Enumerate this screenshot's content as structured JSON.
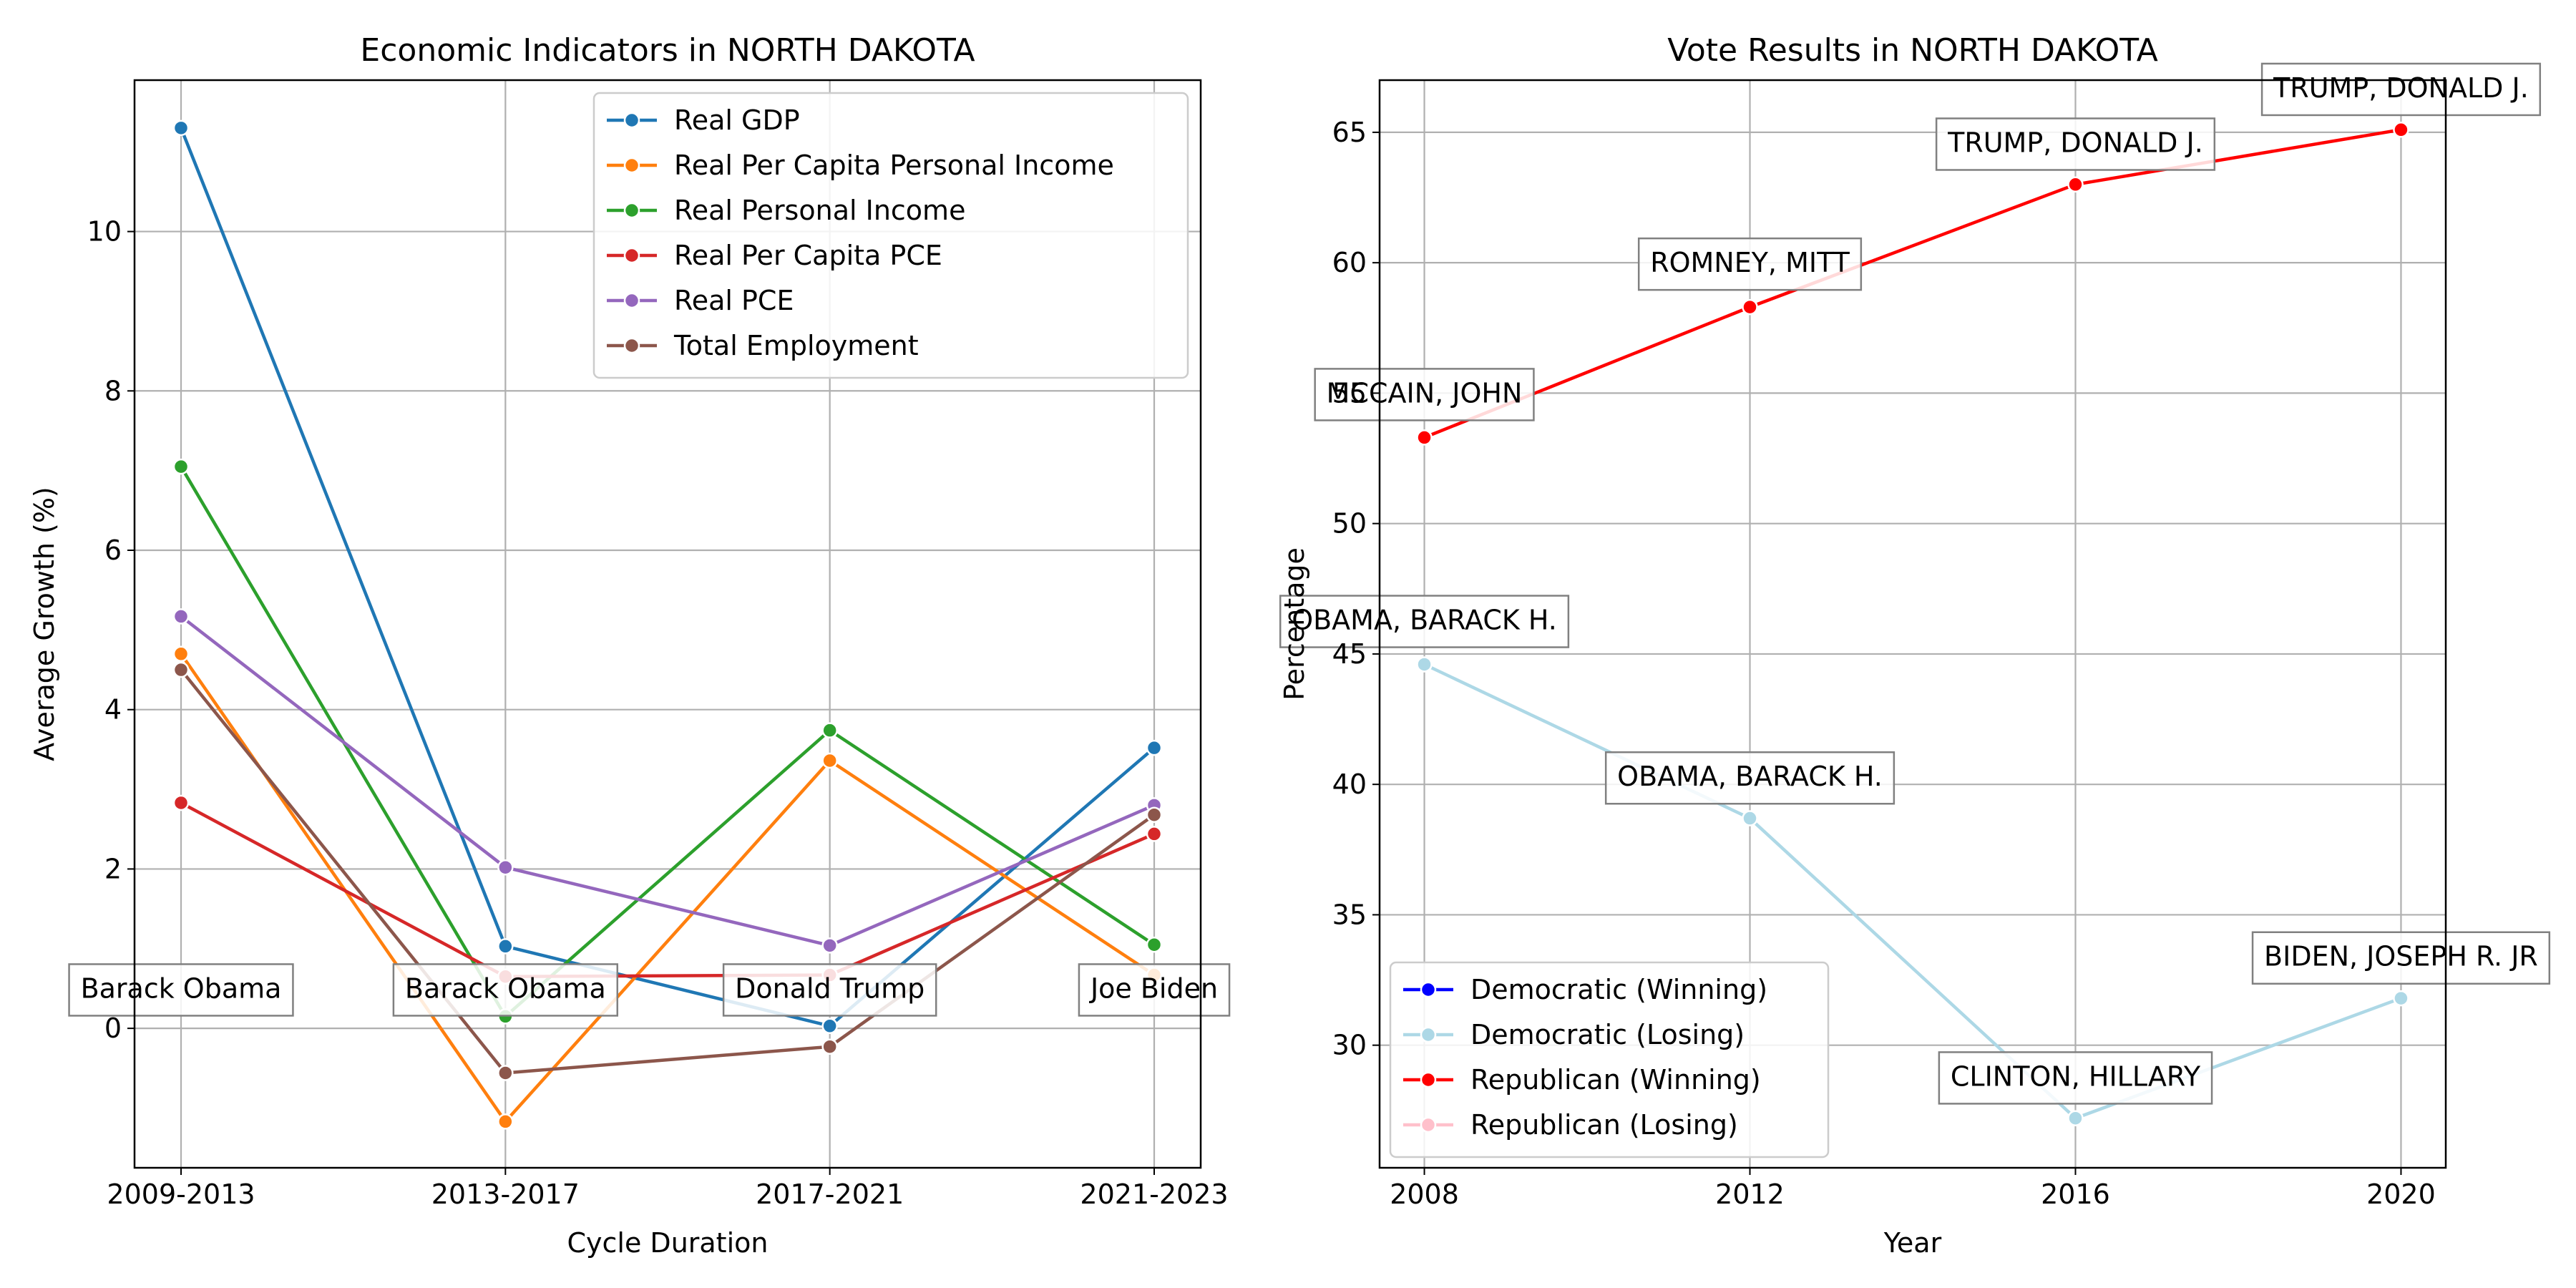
{
  "chart_data": [
    {
      "type": "line",
      "title": "Economic Indicators in NORTH DAKOTA",
      "xlabel": "Cycle Duration",
      "ylabel": "Average Growth (%)",
      "categories": [
        "2009-2013",
        "2013-2017",
        "2017-2021",
        "2021-2023"
      ],
      "ylim": [
        -1.75,
        11.9
      ],
      "yticks": [
        0,
        2,
        4,
        6,
        8,
        10
      ],
      "grid": true,
      "legend_position": "upper-right",
      "series": [
        {
          "name": "Real GDP",
          "color": "#1f77b4",
          "values": [
            11.3,
            1.03,
            0.03,
            3.52
          ]
        },
        {
          "name": "Real Per Capita Personal Income",
          "color": "#ff7f0e",
          "values": [
            4.7,
            -1.17,
            3.36,
            0.67
          ]
        },
        {
          "name": "Real Personal Income",
          "color": "#2ca02c",
          "values": [
            7.05,
            0.15,
            3.74,
            1.05
          ]
        },
        {
          "name": "Real Per Capita PCE",
          "color": "#d62728",
          "values": [
            2.83,
            0.65,
            0.67,
            2.44
          ]
        },
        {
          "name": "Real PCE",
          "color": "#9467bd",
          "values": [
            5.17,
            2.02,
            1.04,
            2.8
          ]
        },
        {
          "name": "Total Employment",
          "color": "#8c564b",
          "values": [
            4.5,
            -0.56,
            -0.23,
            2.68
          ]
        }
      ],
      "annotations": [
        {
          "text": "Barack Obama",
          "category": "2009-2013",
          "y": 0.5
        },
        {
          "text": "Barack Obama",
          "category": "2013-2017",
          "y": 0.5
        },
        {
          "text": "Donald Trump",
          "category": "2017-2021",
          "y": 0.5
        },
        {
          "text": "Joe Biden",
          "category": "2021-2023",
          "y": 0.5
        }
      ]
    },
    {
      "type": "line",
      "title": "Vote Results in NORTH DAKOTA",
      "xlabel": "Year",
      "ylabel": "Percentage",
      "x": [
        2008,
        2012,
        2016,
        2020
      ],
      "xticks": [
        2008,
        2012,
        2016,
        2020
      ],
      "xlim": [
        2007.45,
        2020.55
      ],
      "ylim": [
        25.3,
        67.0
      ],
      "yticks": [
        30,
        35,
        40,
        45,
        50,
        55,
        60,
        65
      ],
      "grid": true,
      "legend_position": "lower-left",
      "legend": [
        {
          "name": "Democratic (Winning)",
          "color": "#0000ff"
        },
        {
          "name": "Democratic (Losing)",
          "color": "#add8e6"
        },
        {
          "name": "Republican (Winning)",
          "color": "#ff0000"
        },
        {
          "name": "Republican (Losing)",
          "color": "#ffc0cb"
        }
      ],
      "series": [
        {
          "name": "Republican (Winning)",
          "color": "#ff0000",
          "values": [
            53.3,
            58.3,
            63.0,
            65.1
          ]
        },
        {
          "name": "Democratic (Losing)",
          "color": "#add8e6",
          "values": [
            44.6,
            38.7,
            27.2,
            31.8
          ]
        }
      ],
      "annotations": [
        {
          "text": "MCCAIN, JOHN",
          "x": 2008,
          "y": 55.0
        },
        {
          "text": "ROMNEY, MITT",
          "x": 2012,
          "y": 60.0
        },
        {
          "text": "TRUMP, DONALD J.",
          "x": 2016,
          "y": 64.6
        },
        {
          "text": "TRUMP, DONALD J.",
          "x": 2020,
          "y": 66.7
        },
        {
          "text": "OBAMA, BARACK H.",
          "x": 2008,
          "y": 46.3
        },
        {
          "text": "OBAMA, BARACK H.",
          "x": 2012,
          "y": 40.3
        },
        {
          "text": "CLINTON, HILLARY",
          "x": 2016,
          "y": 28.8
        },
        {
          "text": "BIDEN, JOSEPH R. JR",
          "x": 2020,
          "y": 33.4
        }
      ]
    }
  ]
}
